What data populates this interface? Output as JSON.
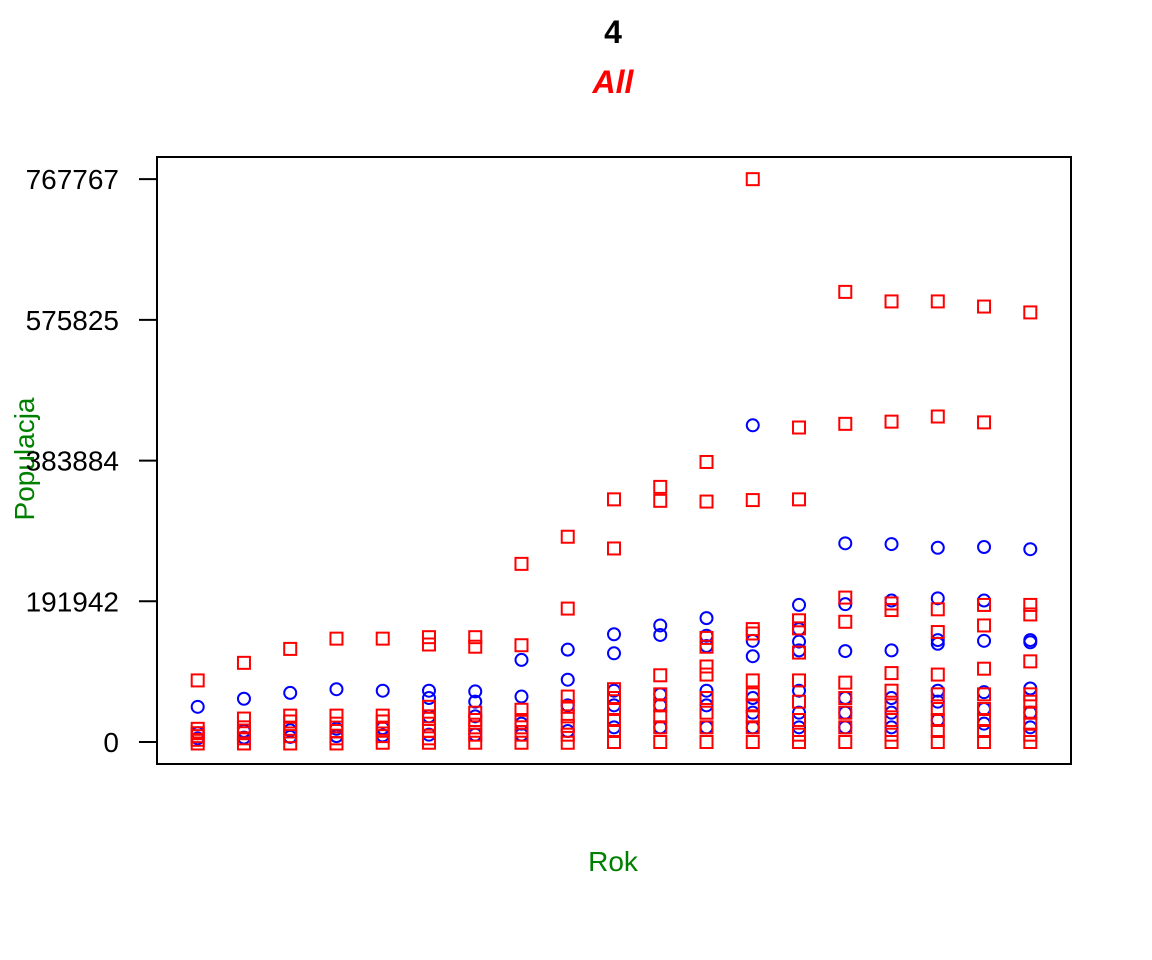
{
  "chart_data": {
    "type": "scatter",
    "title": "4",
    "subtitle": "All",
    "xlabel": "Rok",
    "ylabel": "Populacja",
    "yticks": [
      "0",
      "191942",
      "383884",
      "575825",
      "767767"
    ],
    "ylim": [
      -30000,
      798000
    ],
    "x_ticks_shown": false,
    "grid": false,
    "legend": "none",
    "colors": {
      "title": "#000000",
      "subtitle": "#ff0000",
      "axis_labels": "#008000",
      "series_a": "#0000ff",
      "series_b": "#ff0000"
    },
    "series": [
      {
        "marker": "circle",
        "color": "#0000ff",
        "points": [
          [
            1,
            48000
          ],
          [
            1,
            12000
          ],
          [
            1,
            5000
          ],
          [
            2,
            59000
          ],
          [
            2,
            15000
          ],
          [
            2,
            6000
          ],
          [
            3,
            67000
          ],
          [
            3,
            16000
          ],
          [
            3,
            7000
          ],
          [
            4,
            72000
          ],
          [
            4,
            18000
          ],
          [
            4,
            8000
          ],
          [
            5,
            70000
          ],
          [
            5,
            19000
          ],
          [
            5,
            9000
          ],
          [
            6,
            70000
          ],
          [
            6,
            60000
          ],
          [
            6,
            35000
          ],
          [
            6,
            10000
          ],
          [
            7,
            69000
          ],
          [
            7,
            55000
          ],
          [
            7,
            35000
          ],
          [
            7,
            10000
          ],
          [
            8,
            112000
          ],
          [
            8,
            62000
          ],
          [
            8,
            25000
          ],
          [
            8,
            10000
          ],
          [
            9,
            126000
          ],
          [
            9,
            85000
          ],
          [
            9,
            50000
          ],
          [
            9,
            15000
          ],
          [
            10,
            147000
          ],
          [
            10,
            121000
          ],
          [
            10,
            70000
          ],
          [
            10,
            50000
          ],
          [
            10,
            20000
          ],
          [
            11,
            159000
          ],
          [
            11,
            146000
          ],
          [
            11,
            65000
          ],
          [
            11,
            50000
          ],
          [
            11,
            20000
          ],
          [
            12,
            169000
          ],
          [
            12,
            145000
          ],
          [
            12,
            131000
          ],
          [
            12,
            70000
          ],
          [
            12,
            50000
          ],
          [
            12,
            20000
          ],
          [
            13,
            432000
          ],
          [
            13,
            138000
          ],
          [
            13,
            117000
          ],
          [
            13,
            60000
          ],
          [
            13,
            40000
          ],
          [
            13,
            20000
          ],
          [
            14,
            187000
          ],
          [
            14,
            154000
          ],
          [
            14,
            137000
          ],
          [
            14,
            125000
          ],
          [
            14,
            70000
          ],
          [
            14,
            40000
          ],
          [
            14,
            20000
          ],
          [
            15,
            271000
          ],
          [
            15,
            188000
          ],
          [
            15,
            124000
          ],
          [
            15,
            60000
          ],
          [
            15,
            40000
          ],
          [
            15,
            20000
          ],
          [
            16,
            270000
          ],
          [
            16,
            193000
          ],
          [
            16,
            125000
          ],
          [
            16,
            60000
          ],
          [
            16,
            40000
          ],
          [
            16,
            20000
          ],
          [
            17,
            265000
          ],
          [
            17,
            196000
          ],
          [
            17,
            139000
          ],
          [
            17,
            134000
          ],
          [
            17,
            70000
          ],
          [
            17,
            55000
          ],
          [
            17,
            30000
          ],
          [
            18,
            266000
          ],
          [
            18,
            193000
          ],
          [
            18,
            138000
          ],
          [
            18,
            68000
          ],
          [
            18,
            45000
          ],
          [
            18,
            25000
          ],
          [
            19,
            263000
          ],
          [
            19,
            139000
          ],
          [
            19,
            136000
          ],
          [
            19,
            73000
          ],
          [
            19,
            40000
          ],
          [
            19,
            20000
          ]
        ]
      },
      {
        "marker": "square",
        "color": "#ff0000",
        "points": [
          [
            1,
            84000
          ],
          [
            1,
            18000
          ],
          [
            1,
            12000
          ],
          [
            1,
            8000
          ],
          [
            1,
            3000
          ],
          [
            1,
            -2000
          ],
          [
            2,
            108000
          ],
          [
            2,
            32000
          ],
          [
            2,
            20000
          ],
          [
            2,
            12000
          ],
          [
            2,
            5000
          ],
          [
            2,
            -2000
          ],
          [
            3,
            127000
          ],
          [
            3,
            36000
          ],
          [
            3,
            28000
          ],
          [
            3,
            18000
          ],
          [
            3,
            8000
          ],
          [
            3,
            -2000
          ],
          [
            4,
            141000
          ],
          [
            4,
            36000
          ],
          [
            4,
            25000
          ],
          [
            4,
            15000
          ],
          [
            4,
            5000
          ],
          [
            4,
            -2000
          ],
          [
            5,
            141000
          ],
          [
            5,
            36000
          ],
          [
            5,
            28000
          ],
          [
            5,
            18000
          ],
          [
            5,
            8000
          ],
          [
            5,
            -1000
          ],
          [
            6,
            143000
          ],
          [
            6,
            133000
          ],
          [
            6,
            48000
          ],
          [
            6,
            35000
          ],
          [
            6,
            25000
          ],
          [
            6,
            15000
          ],
          [
            6,
            5000
          ],
          [
            6,
            -1000
          ],
          [
            7,
            143000
          ],
          [
            7,
            130000
          ],
          [
            7,
            40000
          ],
          [
            7,
            30000
          ],
          [
            7,
            20000
          ],
          [
            7,
            10000
          ],
          [
            7,
            -1000
          ],
          [
            8,
            243000
          ],
          [
            8,
            132000
          ],
          [
            8,
            44000
          ],
          [
            8,
            30000
          ],
          [
            8,
            20000
          ],
          [
            8,
            10000
          ],
          [
            8,
            -1000
          ],
          [
            9,
            280000
          ],
          [
            9,
            182000
          ],
          [
            9,
            62000
          ],
          [
            9,
            48000
          ],
          [
            9,
            35000
          ],
          [
            9,
            22000
          ],
          [
            9,
            10000
          ],
          [
            9,
            -1000
          ],
          [
            10,
            331000
          ],
          [
            10,
            264000
          ],
          [
            10,
            72000
          ],
          [
            10,
            60000
          ],
          [
            10,
            45000
          ],
          [
            10,
            30000
          ],
          [
            10,
            15000
          ],
          [
            10,
            0
          ],
          [
            11,
            348000
          ],
          [
            11,
            329000
          ],
          [
            11,
            91000
          ],
          [
            11,
            65000
          ],
          [
            11,
            50000
          ],
          [
            11,
            35000
          ],
          [
            11,
            20000
          ],
          [
            11,
            0
          ],
          [
            12,
            382000
          ],
          [
            12,
            328000
          ],
          [
            12,
            142000
          ],
          [
            12,
            130000
          ],
          [
            12,
            103000
          ],
          [
            12,
            92000
          ],
          [
            12,
            60000
          ],
          [
            12,
            40000
          ],
          [
            12,
            20000
          ],
          [
            12,
            0
          ],
          [
            13,
            767767
          ],
          [
            13,
            330000
          ],
          [
            13,
            154000
          ],
          [
            13,
            148000
          ],
          [
            13,
            84000
          ],
          [
            13,
            65000
          ],
          [
            13,
            50000
          ],
          [
            13,
            35000
          ],
          [
            13,
            20000
          ],
          [
            13,
            0
          ],
          [
            14,
            429000
          ],
          [
            14,
            331000
          ],
          [
            14,
            166000
          ],
          [
            14,
            155000
          ],
          [
            14,
            122000
          ],
          [
            14,
            84000
          ],
          [
            14,
            55000
          ],
          [
            14,
            30000
          ],
          [
            14,
            10000
          ],
          [
            14,
            0
          ],
          [
            15,
            614000
          ],
          [
            15,
            434000
          ],
          [
            15,
            197000
          ],
          [
            15,
            164000
          ],
          [
            15,
            81000
          ],
          [
            15,
            60000
          ],
          [
            15,
            40000
          ],
          [
            15,
            20000
          ],
          [
            15,
            0
          ],
          [
            16,
            601000
          ],
          [
            16,
            437000
          ],
          [
            16,
            189000
          ],
          [
            16,
            180000
          ],
          [
            16,
            94000
          ],
          [
            16,
            70000
          ],
          [
            16,
            50000
          ],
          [
            16,
            30000
          ],
          [
            16,
            10000
          ],
          [
            16,
            0
          ],
          [
            17,
            601000
          ],
          [
            17,
            444000
          ],
          [
            17,
            181000
          ],
          [
            17,
            150000
          ],
          [
            17,
            92000
          ],
          [
            17,
            65000
          ],
          [
            17,
            45000
          ],
          [
            17,
            30000
          ],
          [
            17,
            15000
          ],
          [
            17,
            0
          ],
          [
            18,
            594000
          ],
          [
            18,
            436000
          ],
          [
            18,
            187000
          ],
          [
            18,
            159000
          ],
          [
            18,
            100000
          ],
          [
            18,
            65000
          ],
          [
            18,
            45000
          ],
          [
            18,
            30000
          ],
          [
            18,
            15000
          ],
          [
            18,
            0
          ],
          [
            19,
            586000
          ],
          [
            19,
            187000
          ],
          [
            19,
            174000
          ],
          [
            19,
            110000
          ],
          [
            19,
            65000
          ],
          [
            19,
            55000
          ],
          [
            19,
            40000
          ],
          [
            19,
            25000
          ],
          [
            19,
            10000
          ],
          [
            19,
            0
          ]
        ]
      }
    ]
  }
}
